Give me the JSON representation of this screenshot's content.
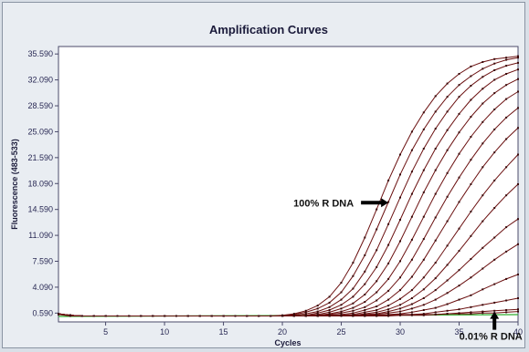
{
  "chart_data": {
    "type": "line",
    "title": "Amplification Curves",
    "xlabel": "Cycles",
    "ylabel": "Fluorescence (483-533)",
    "xlim": [
      1,
      40
    ],
    "ylim": [
      -0.6,
      36.6
    ],
    "x_ticks": [
      5,
      10,
      15,
      20,
      25,
      30,
      35,
      40
    ],
    "y_ticks": [
      "0.590",
      "4.090",
      "7.590",
      "11.090",
      "14.590",
      "18.090",
      "21.590",
      "25.090",
      "28.590",
      "32.090",
      "35.590"
    ],
    "grid": false,
    "legend": "none",
    "series_style": {
      "line_color": "#6b1010",
      "control_color": "#2fae2f",
      "marker": "dark"
    },
    "baseline": 0.2,
    "x": [
      1,
      2,
      3,
      4,
      5,
      6,
      7,
      8,
      9,
      10,
      11,
      12,
      13,
      14,
      15,
      16,
      17,
      18,
      19,
      20,
      21,
      22,
      23,
      24,
      25,
      26,
      27,
      28,
      29,
      30,
      31,
      32,
      33,
      34,
      35,
      36,
      37,
      38,
      39,
      40
    ],
    "series": [
      {
        "values": [
          0.5,
          0.3,
          0.2,
          0.2,
          0.2,
          0.2,
          0.2,
          0.2,
          0.2,
          0.2,
          0.2,
          0.2,
          0.2,
          0.2,
          0.2,
          0.2,
          0.2,
          0.2,
          0.2,
          0.3,
          0.5,
          0.9,
          1.6,
          2.8,
          4.7,
          7.4,
          10.8,
          14.6,
          18.5,
          22.0,
          25.1,
          27.7,
          29.9,
          31.6,
          32.9,
          33.9,
          34.5,
          34.9,
          35.1,
          35.3
        ]
      },
      {
        "values": [
          0.5,
          0.3,
          0.2,
          0.2,
          0.2,
          0.2,
          0.2,
          0.2,
          0.2,
          0.2,
          0.2,
          0.2,
          0.2,
          0.2,
          0.2,
          0.2,
          0.2,
          0.2,
          0.2,
          0.2,
          0.4,
          0.7,
          1.2,
          2.0,
          3.4,
          5.6,
          8.4,
          11.9,
          15.6,
          19.3,
          22.6,
          25.4,
          27.8,
          29.8,
          31.4,
          32.6,
          33.6,
          34.3,
          34.8,
          35.1
        ]
      },
      {
        "values": [
          0.5,
          0.3,
          0.2,
          0.2,
          0.2,
          0.2,
          0.2,
          0.2,
          0.2,
          0.2,
          0.2,
          0.2,
          0.2,
          0.2,
          0.2,
          0.2,
          0.2,
          0.2,
          0.2,
          0.2,
          0.3,
          0.5,
          0.8,
          1.4,
          2.4,
          3.9,
          6.2,
          9.1,
          12.6,
          16.2,
          19.7,
          22.8,
          25.5,
          27.8,
          29.8,
          31.3,
          32.5,
          33.4,
          34.0,
          34.4
        ]
      },
      {
        "values": [
          0.5,
          0.3,
          0.2,
          0.2,
          0.2,
          0.2,
          0.2,
          0.2,
          0.2,
          0.2,
          0.2,
          0.2,
          0.2,
          0.2,
          0.2,
          0.2,
          0.2,
          0.2,
          0.2,
          0.2,
          0.2,
          0.3,
          0.6,
          1.0,
          1.7,
          2.8,
          4.5,
          6.8,
          9.8,
          13.2,
          16.7,
          19.9,
          22.8,
          25.3,
          27.5,
          29.4,
          30.9,
          32.1,
          32.9,
          33.5
        ]
      },
      {
        "values": [
          0.5,
          0.3,
          0.2,
          0.2,
          0.2,
          0.2,
          0.2,
          0.2,
          0.2,
          0.2,
          0.2,
          0.2,
          0.2,
          0.2,
          0.2,
          0.2,
          0.2,
          0.2,
          0.2,
          0.2,
          0.2,
          0.3,
          0.4,
          0.7,
          1.2,
          1.9,
          3.1,
          4.9,
          7.3,
          10.3,
          13.6,
          16.9,
          19.9,
          22.6,
          25.0,
          27.1,
          28.9,
          30.3,
          31.4,
          32.2
        ]
      },
      {
        "values": [
          0.5,
          0.3,
          0.2,
          0.2,
          0.2,
          0.2,
          0.2,
          0.2,
          0.2,
          0.2,
          0.2,
          0.2,
          0.2,
          0.2,
          0.2,
          0.2,
          0.2,
          0.2,
          0.2,
          0.2,
          0.2,
          0.2,
          0.3,
          0.5,
          0.8,
          1.3,
          2.1,
          3.4,
          5.2,
          7.6,
          10.5,
          13.6,
          16.7,
          19.5,
          22.1,
          24.4,
          26.4,
          28.1,
          29.5,
          30.5
        ]
      },
      {
        "values": [
          0.5,
          0.3,
          0.2,
          0.2,
          0.2,
          0.2,
          0.2,
          0.2,
          0.2,
          0.2,
          0.2,
          0.2,
          0.2,
          0.2,
          0.2,
          0.2,
          0.2,
          0.2,
          0.2,
          0.2,
          0.2,
          0.2,
          0.3,
          0.4,
          0.6,
          0.9,
          1.4,
          2.3,
          3.6,
          5.4,
          7.8,
          10.6,
          13.5,
          16.3,
          18.9,
          21.3,
          23.5,
          25.4,
          27.0,
          28.3
        ]
      },
      {
        "values": [
          0.5,
          0.3,
          0.2,
          0.2,
          0.2,
          0.2,
          0.2,
          0.2,
          0.2,
          0.2,
          0.2,
          0.2,
          0.2,
          0.2,
          0.2,
          0.2,
          0.2,
          0.2,
          0.2,
          0.2,
          0.2,
          0.2,
          0.2,
          0.3,
          0.4,
          0.6,
          1.0,
          1.5,
          2.4,
          3.7,
          5.5,
          7.8,
          10.4,
          13.0,
          15.6,
          18.0,
          20.3,
          22.3,
          24.1,
          25.6
        ]
      },
      {
        "values": [
          0.5,
          0.3,
          0.2,
          0.2,
          0.2,
          0.2,
          0.2,
          0.2,
          0.2,
          0.2,
          0.2,
          0.2,
          0.2,
          0.2,
          0.2,
          0.2,
          0.2,
          0.2,
          0.2,
          0.2,
          0.2,
          0.2,
          0.2,
          0.3,
          0.3,
          0.4,
          0.7,
          1.0,
          1.6,
          2.5,
          3.7,
          5.4,
          7.4,
          9.7,
          12.0,
          14.3,
          16.5,
          18.5,
          20.3,
          22.0
        ]
      },
      {
        "values": [
          0.5,
          0.3,
          0.2,
          0.2,
          0.2,
          0.2,
          0.2,
          0.2,
          0.2,
          0.2,
          0.2,
          0.2,
          0.2,
          0.2,
          0.2,
          0.2,
          0.2,
          0.2,
          0.2,
          0.2,
          0.2,
          0.2,
          0.2,
          0.2,
          0.3,
          0.3,
          0.5,
          0.7,
          1.1,
          1.7,
          2.6,
          3.8,
          5.3,
          7.1,
          9.0,
          11.0,
          13.0,
          14.8,
          16.5,
          18.0
        ]
      },
      {
        "values": [
          0.5,
          0.3,
          0.2,
          0.2,
          0.2,
          0.2,
          0.2,
          0.2,
          0.2,
          0.2,
          0.2,
          0.2,
          0.2,
          0.2,
          0.2,
          0.2,
          0.2,
          0.2,
          0.2,
          0.2,
          0.2,
          0.2,
          0.2,
          0.2,
          0.2,
          0.3,
          0.4,
          0.5,
          0.8,
          1.2,
          1.8,
          2.6,
          3.7,
          5.0,
          6.4,
          7.9,
          9.4,
          10.8,
          12.2,
          13.3
        ]
      },
      {
        "values": [
          0.5,
          0.3,
          0.2,
          0.2,
          0.2,
          0.2,
          0.2,
          0.2,
          0.2,
          0.2,
          0.2,
          0.2,
          0.2,
          0.2,
          0.2,
          0.2,
          0.2,
          0.2,
          0.2,
          0.2,
          0.2,
          0.2,
          0.2,
          0.2,
          0.2,
          0.2,
          0.3,
          0.4,
          0.6,
          0.8,
          1.2,
          1.7,
          2.4,
          3.3,
          4.3,
          5.4,
          6.6,
          7.8,
          8.9,
          9.9
        ]
      },
      {
        "values": [
          0.5,
          0.3,
          0.2,
          0.2,
          0.2,
          0.2,
          0.2,
          0.2,
          0.2,
          0.2,
          0.2,
          0.2,
          0.2,
          0.2,
          0.2,
          0.2,
          0.2,
          0.2,
          0.2,
          0.2,
          0.2,
          0.2,
          0.2,
          0.2,
          0.2,
          0.2,
          0.2,
          0.3,
          0.4,
          0.5,
          0.7,
          1.0,
          1.3,
          1.8,
          2.4,
          3.0,
          3.8,
          4.5,
          5.2,
          5.8
        ]
      },
      {
        "values": [
          0.5,
          0.3,
          0.2,
          0.2,
          0.2,
          0.2,
          0.2,
          0.2,
          0.2,
          0.2,
          0.2,
          0.2,
          0.2,
          0.2,
          0.2,
          0.2,
          0.2,
          0.2,
          0.2,
          0.2,
          0.2,
          0.2,
          0.2,
          0.2,
          0.2,
          0.2,
          0.2,
          0.2,
          0.3,
          0.3,
          0.4,
          0.5,
          0.7,
          0.9,
          1.1,
          1.4,
          1.7,
          2.0,
          2.3,
          2.6
        ]
      },
      {
        "values": [
          0.5,
          0.3,
          0.2,
          0.2,
          0.2,
          0.2,
          0.2,
          0.2,
          0.2,
          0.2,
          0.2,
          0.2,
          0.2,
          0.2,
          0.2,
          0.2,
          0.2,
          0.2,
          0.2,
          0.2,
          0.2,
          0.2,
          0.2,
          0.2,
          0.2,
          0.2,
          0.2,
          0.2,
          0.2,
          0.3,
          0.3,
          0.3,
          0.4,
          0.5,
          0.6,
          0.7,
          0.8,
          0.9,
          1.0,
          1.1
        ]
      },
      {
        "values": [
          0.4,
          0.2,
          0.2,
          0.2,
          0.2,
          0.2,
          0.2,
          0.2,
          0.2,
          0.2,
          0.2,
          0.2,
          0.2,
          0.2,
          0.2,
          0.2,
          0.2,
          0.2,
          0.2,
          0.2,
          0.2,
          0.2,
          0.2,
          0.2,
          0.3,
          0.3,
          0.3,
          0.3,
          0.3,
          0.4,
          0.4,
          0.4,
          0.4,
          0.5,
          0.5,
          0.5,
          0.6,
          0.6,
          0.7,
          0.8
        ]
      }
    ],
    "annotations": [
      {
        "text": "100% R DNA",
        "target_x": 29,
        "target_y": 15.5,
        "arrow": "right"
      },
      {
        "text": "0.01% R DNA",
        "target_x": 38,
        "target_y": 0.8,
        "arrow": "up"
      }
    ]
  }
}
